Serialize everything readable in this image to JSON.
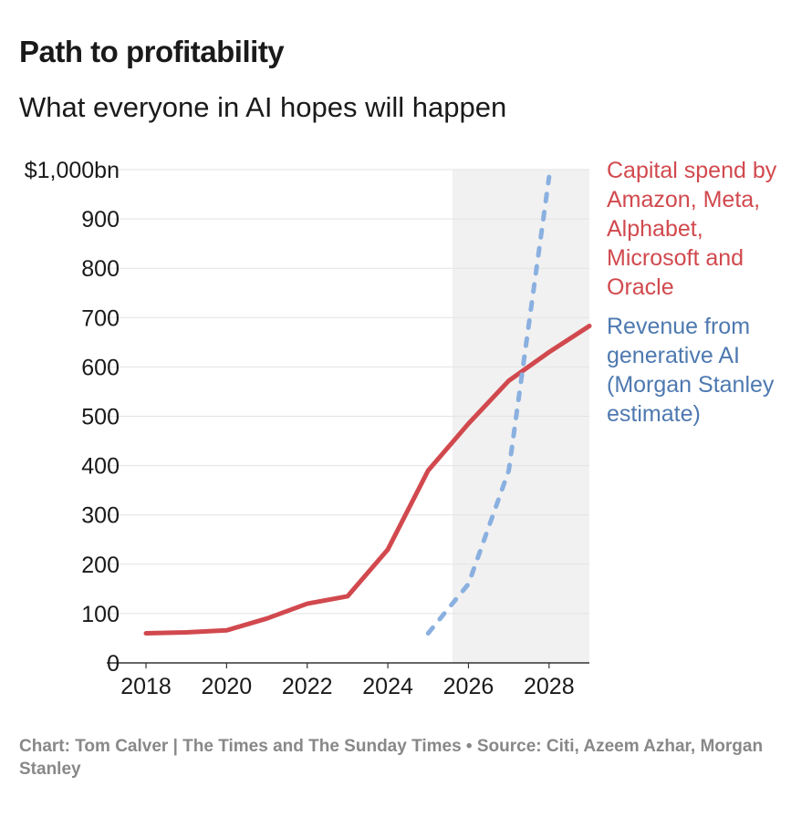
{
  "title": "Path to profitability",
  "subtitle": "What everyone in AI hopes will happen",
  "footer": "Chart: Tom Calver | The Times and The Sunday Times • Source: Citi, Azeem Azhar, Morgan Stanley",
  "chart_data": {
    "type": "line",
    "xlim": [
      2018,
      2029
    ],
    "ylim": [
      0,
      1000
    ],
    "x_ticks": [
      2018,
      2020,
      2022,
      2024,
      2026,
      2028
    ],
    "x_tick_labels": [
      "2018",
      "2020",
      "2022",
      "2024",
      "2026",
      "2028"
    ],
    "y_ticks": [
      0,
      100,
      200,
      300,
      400,
      500,
      600,
      700,
      800,
      900,
      1000
    ],
    "y_tick_labels": [
      "0",
      "100",
      "200",
      "300",
      "400",
      "500",
      "600",
      "700",
      "800",
      "900",
      "$1,000bn"
    ],
    "grid": true,
    "shaded_region": {
      "from": 2025.6,
      "to": 2029
    },
    "series": [
      {
        "name": "Capital spend by Amazon, Meta, Alphabet, Microsoft and Oracle",
        "label_lines": [
          "Capital spend by",
          "Amazon, Meta,",
          "Alphabet,",
          "Microsoft and",
          "Oracle"
        ],
        "color": "#d1494e",
        "style": "solid",
        "x": [
          2018,
          2019,
          2020,
          2021,
          2022,
          2023,
          2024,
          2025,
          2026,
          2027,
          2028,
          2029
        ],
        "values": [
          60,
          62,
          66,
          90,
          120,
          135,
          230,
          390,
          485,
          572,
          630,
          683
        ]
      },
      {
        "name": "Revenue from generative AI (Morgan Stanley estimate)",
        "label_lines": [
          "Revenue from",
          "generative AI",
          "(Morgan Stanley",
          "estimate)"
        ],
        "color": "#4e79b0",
        "line_color": "#8ab0e0",
        "style": "dashed",
        "x": [
          2025,
          2026,
          2027,
          2028
        ],
        "values": [
          60,
          160,
          390,
          985
        ]
      }
    ]
  }
}
